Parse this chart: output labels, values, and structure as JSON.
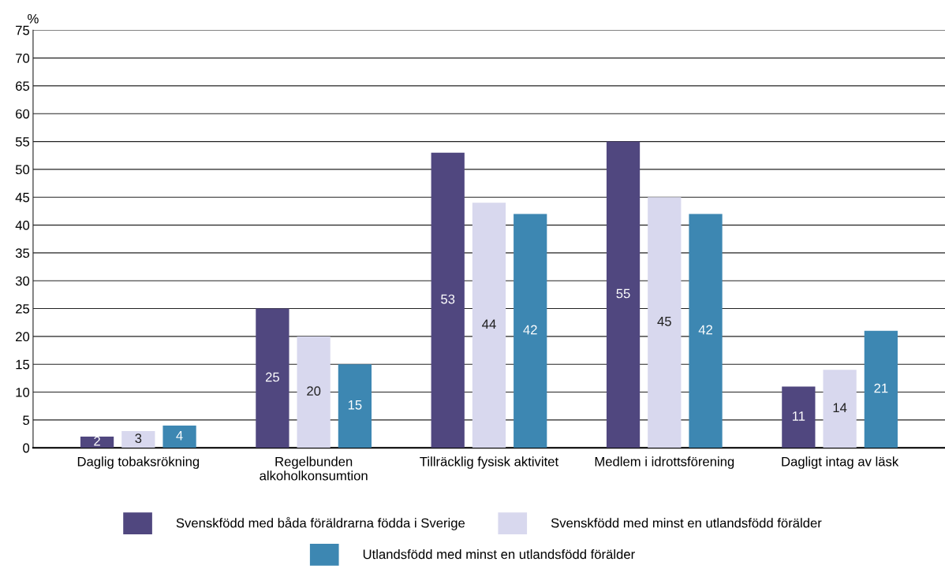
{
  "chart_data": {
    "type": "bar",
    "ylabel": "%",
    "categories": [
      "Daglig tobaksrökning",
      "Regelbunden\nalkoholkonsumtion",
      "Tillräcklig fysisk aktivitet",
      "Medlem i idrottsförening",
      "Dagligt intag av läsk"
    ],
    "series": [
      {
        "name": "Svenskfödd med båda föräldrarna födda i Sverige",
        "color": "#50477f",
        "values": [
          2,
          25,
          53,
          55,
          11
        ]
      },
      {
        "name": "Svenskfödd med minst en utlandsfödd förälder",
        "color": "#d8d8ee",
        "values": [
          3,
          20,
          44,
          45,
          14
        ]
      },
      {
        "name": "Utlandsfödd med minst en utlandsfödd förälder",
        "color": "#3d87b2",
        "values": [
          4,
          15,
          42,
          42,
          21
        ]
      }
    ],
    "ylim": [
      0,
      75
    ],
    "yticks": [
      0,
      5,
      10,
      15,
      20,
      25,
      30,
      35,
      40,
      45,
      50,
      55,
      60,
      65,
      70,
      75
    ],
    "grid": "y",
    "legend": "bottom",
    "data_labels": true
  }
}
